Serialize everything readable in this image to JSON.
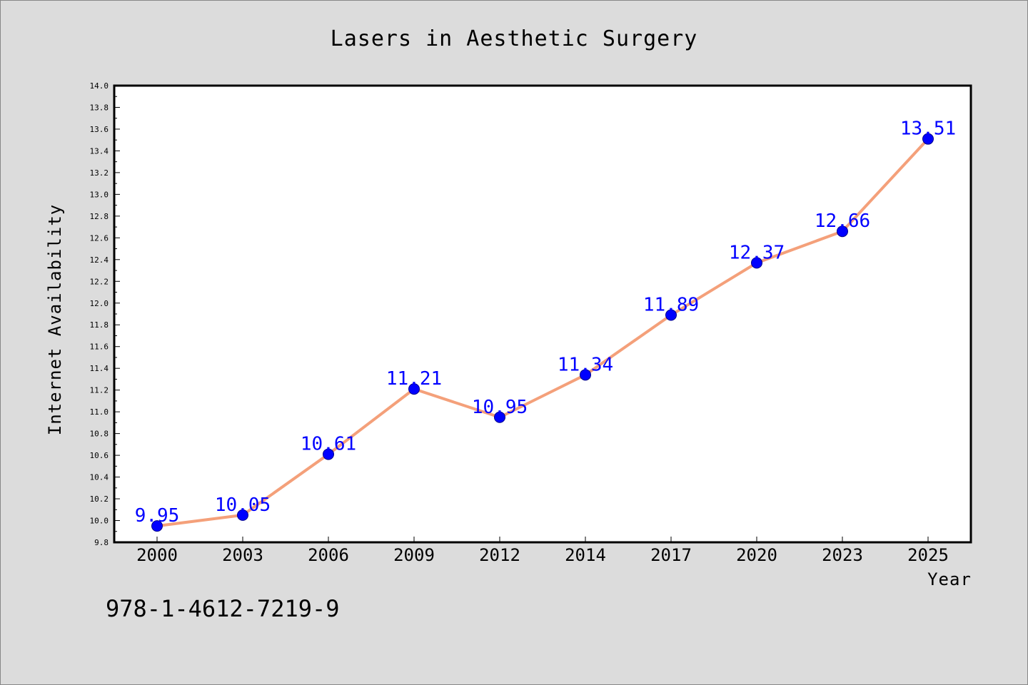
{
  "chart_data": {
    "type": "line",
    "title": "Lasers in Aesthetic Surgery",
    "xlabel": "Year",
    "ylabel": "Internet Availability",
    "categories": [
      "2000",
      "2003",
      "2006",
      "2009",
      "2012",
      "2014",
      "2017",
      "2020",
      "2023",
      "2025"
    ],
    "values": [
      9.95,
      10.05,
      10.61,
      11.21,
      10.95,
      11.34,
      11.89,
      12.37,
      12.66,
      13.51
    ],
    "data_labels": [
      "9.95",
      "10.05",
      "10.61",
      "11.21",
      "10.95",
      "11.34",
      "11.89",
      "12.37",
      "12.66",
      "13.51"
    ],
    "ylim": [
      9.8,
      14.0
    ],
    "yticks": [
      "9.8",
      "10.0",
      "10.2",
      "10.4",
      "10.6",
      "10.8",
      "11.0",
      "11.2",
      "11.4",
      "11.6",
      "11.8",
      "12.0",
      "12.2",
      "12.4",
      "12.6",
      "12.8",
      "13.0",
      "13.2",
      "13.4",
      "13.6",
      "13.8",
      "14.0"
    ],
    "grid": false,
    "line_color": "#f4a07a",
    "marker_color": "#0000ff",
    "label_color": "#0000ff",
    "background_color": "#dcdcdc",
    "plot_background": "#ffffff"
  },
  "footer": {
    "isbn": "978-1-4612-7219-9"
  }
}
